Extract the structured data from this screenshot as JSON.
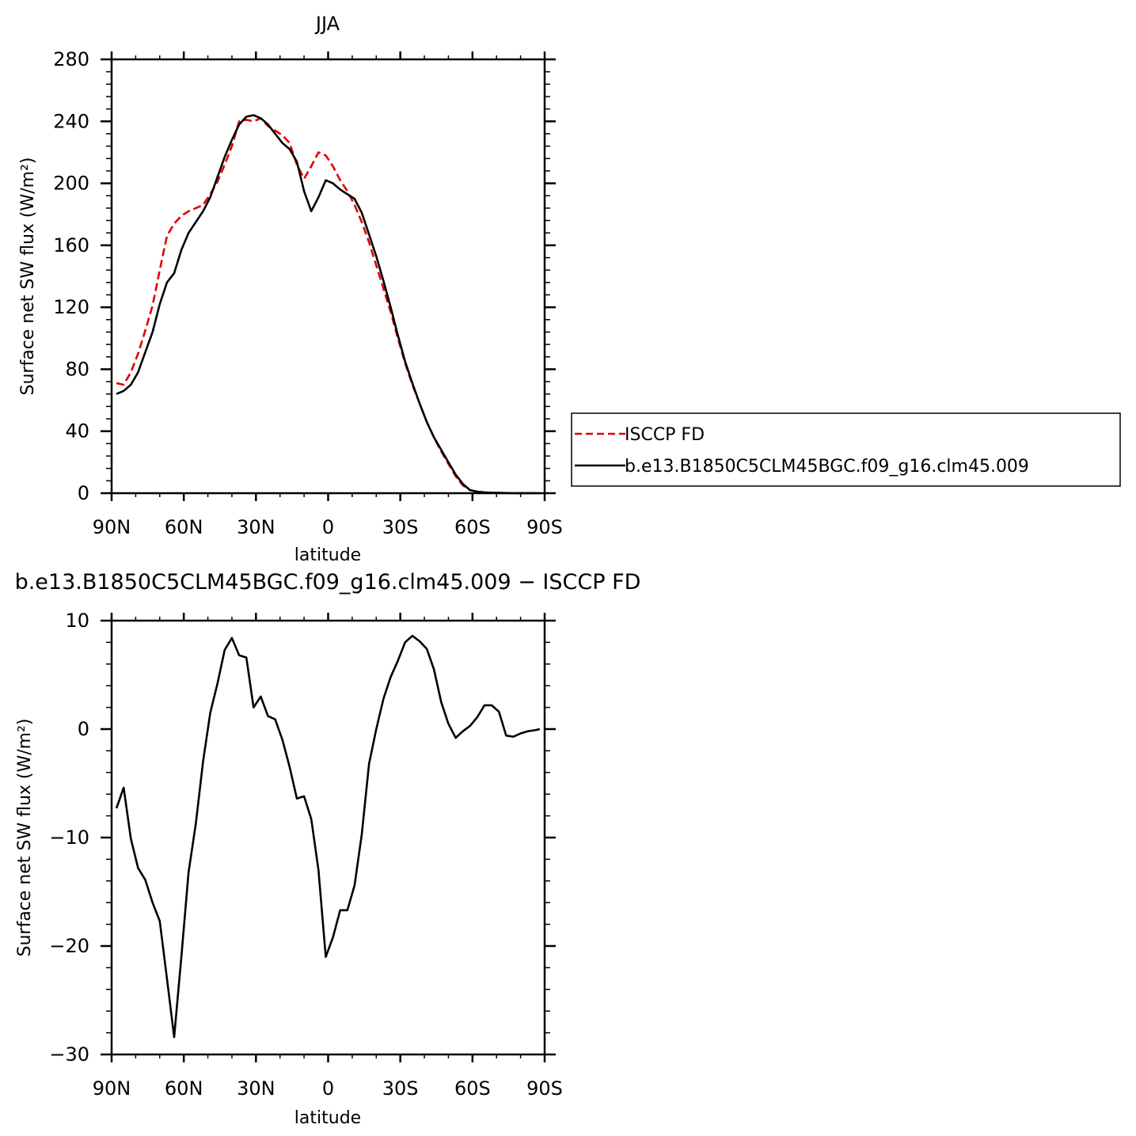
{
  "chart_data": [
    {
      "type": "line",
      "title": "JJA",
      "xlabel": "latitude",
      "ylabel": "Surface net SW flux (W/m²)",
      "xlim": [
        -90,
        90
      ],
      "ylim": [
        0,
        280
      ],
      "x_tick_values": [
        -90,
        -60,
        -30,
        0,
        30,
        60,
        90
      ],
      "x_tick_labels": [
        "90N",
        "60N",
        "30N",
        "0",
        "30S",
        "60S",
        "90S"
      ],
      "y_ticks": [
        0,
        40,
        80,
        120,
        160,
        200,
        240,
        280
      ],
      "legend": {
        "placement": "right",
        "entries": [
          "ISCCP FD",
          "b.e13.B1850C5CLM45BGC.f09_g16.clm45.009"
        ]
      },
      "series": [
        {
          "name": "ISCCP FD",
          "color": "#e00000",
          "dash": "dashed",
          "x": [
            -88,
            -85,
            -82,
            -79,
            -76,
            -73,
            -70,
            -67,
            -64,
            -61,
            -58,
            -55,
            -52,
            -49,
            -46,
            -43,
            -40,
            -37,
            -34,
            -31,
            -28,
            -25,
            -22,
            -19,
            -16,
            -13,
            -10,
            -7,
            -4,
            -1,
            2,
            5,
            8,
            11,
            14,
            17,
            20,
            23,
            26,
            29,
            32,
            35,
            38,
            41,
            44,
            47,
            50,
            53,
            56,
            59,
            62,
            65,
            68,
            71,
            74,
            77,
            80,
            83,
            86,
            88
          ],
          "y": [
            71,
            70,
            78,
            90,
            105,
            121,
            144,
            166,
            174,
            179,
            182,
            184,
            186,
            193,
            201,
            212,
            224,
            240,
            241,
            240,
            242,
            237,
            234,
            231,
            226,
            212,
            203,
            211,
            220,
            218,
            211,
            202,
            195,
            186,
            175,
            162,
            147,
            132,
            117,
            100,
            84,
            70,
            58,
            46,
            36,
            27,
            19,
            11,
            5,
            2,
            1,
            0.5,
            0.3,
            0.2,
            0.1,
            0,
            0,
            0,
            0,
            0
          ]
        },
        {
          "name": "b.e13.B1850C5CLM45BGC.f09_g16.clm45.009",
          "color": "#000000",
          "dash": "solid",
          "x": [
            -88,
            -85,
            -82,
            -79,
            -76,
            -73,
            -70,
            -67,
            -64,
            -61,
            -58,
            -55,
            -52,
            -49,
            -46,
            -43,
            -40,
            -37,
            -34,
            -31,
            -28,
            -25,
            -22,
            -19,
            -16,
            -13,
            -10,
            -7,
            -4,
            -1,
            2,
            5,
            8,
            11,
            14,
            17,
            20,
            23,
            26,
            29,
            32,
            35,
            38,
            41,
            44,
            47,
            50,
            53,
            56,
            59,
            62,
            65,
            68,
            71,
            74,
            77,
            80,
            83,
            86,
            88
          ],
          "y": [
            64,
            66,
            70,
            78,
            91,
            104,
            122,
            136,
            142,
            157,
            168,
            175,
            182,
            191,
            204,
            217,
            228,
            238,
            243,
            244,
            242,
            238,
            232,
            226,
            222,
            214,
            195,
            182,
            191,
            202,
            200,
            196,
            193,
            190,
            181,
            167,
            153,
            137,
            120,
            102,
            85,
            71,
            58,
            46,
            36,
            28,
            20,
            12,
            6,
            2,
            1,
            0.5,
            0.3,
            0.2,
            0.1,
            0,
            0,
            0,
            0,
            0
          ]
        }
      ]
    },
    {
      "type": "line",
      "title": "b.e13.B1850C5CLM45BGC.f09_g16.clm45.009 − ISCCP FD",
      "xlabel": "latitude",
      "ylabel": "Surface net SW flux (W/m²)",
      "xlim": [
        -90,
        90
      ],
      "ylim": [
        -30,
        10
      ],
      "x_tick_values": [
        -90,
        -60,
        -30,
        0,
        30,
        60,
        90
      ],
      "x_tick_labels": [
        "90N",
        "60N",
        "30N",
        "0",
        "30S",
        "60S",
        "90S"
      ],
      "y_ticks": [
        -30,
        -20,
        -10,
        0,
        10
      ],
      "series": [
        {
          "color": "#000000",
          "dash": "solid",
          "x": [
            -88,
            -85,
            -82,
            -79,
            -76,
            -73,
            -70,
            -67,
            -64,
            -61,
            -58,
            -55,
            -52,
            -49,
            -46,
            -43,
            -40,
            -37,
            -34,
            -31,
            -28,
            -25,
            -22,
            -19,
            -16,
            -13,
            -10,
            -7,
            -4,
            -1,
            2,
            5,
            8,
            11,
            14,
            17,
            20,
            23,
            26,
            29,
            32,
            35,
            38,
            41,
            44,
            47,
            50,
            53,
            56,
            59,
            62,
            65,
            68,
            71,
            74,
            77,
            80,
            83,
            86,
            88
          ],
          "y": [
            -7.3,
            -5.4,
            -10.1,
            -12.8,
            -13.9,
            -16.0,
            -17.7,
            -23.0,
            -28.4,
            -21.0,
            -13.2,
            -8.7,
            -3.0,
            1.5,
            4.2,
            7.3,
            8.4,
            6.8,
            6.6,
            2.0,
            3.0,
            1.2,
            0.9,
            -1.0,
            -3.5,
            -6.4,
            -6.2,
            -8.3,
            -13.0,
            -21.0,
            -19.2,
            -16.7,
            -16.7,
            -14.4,
            -9.7,
            -3.2,
            0.0,
            2.8,
            4.8,
            6.3,
            8.0,
            8.6,
            8.1,
            7.4,
            5.5,
            2.5,
            0.5,
            -0.8,
            -0.2,
            0.3,
            1.1,
            2.2,
            2.2,
            1.6,
            -0.6,
            -0.7,
            -0.4,
            -0.2,
            -0.1,
            0.0
          ]
        }
      ]
    }
  ]
}
